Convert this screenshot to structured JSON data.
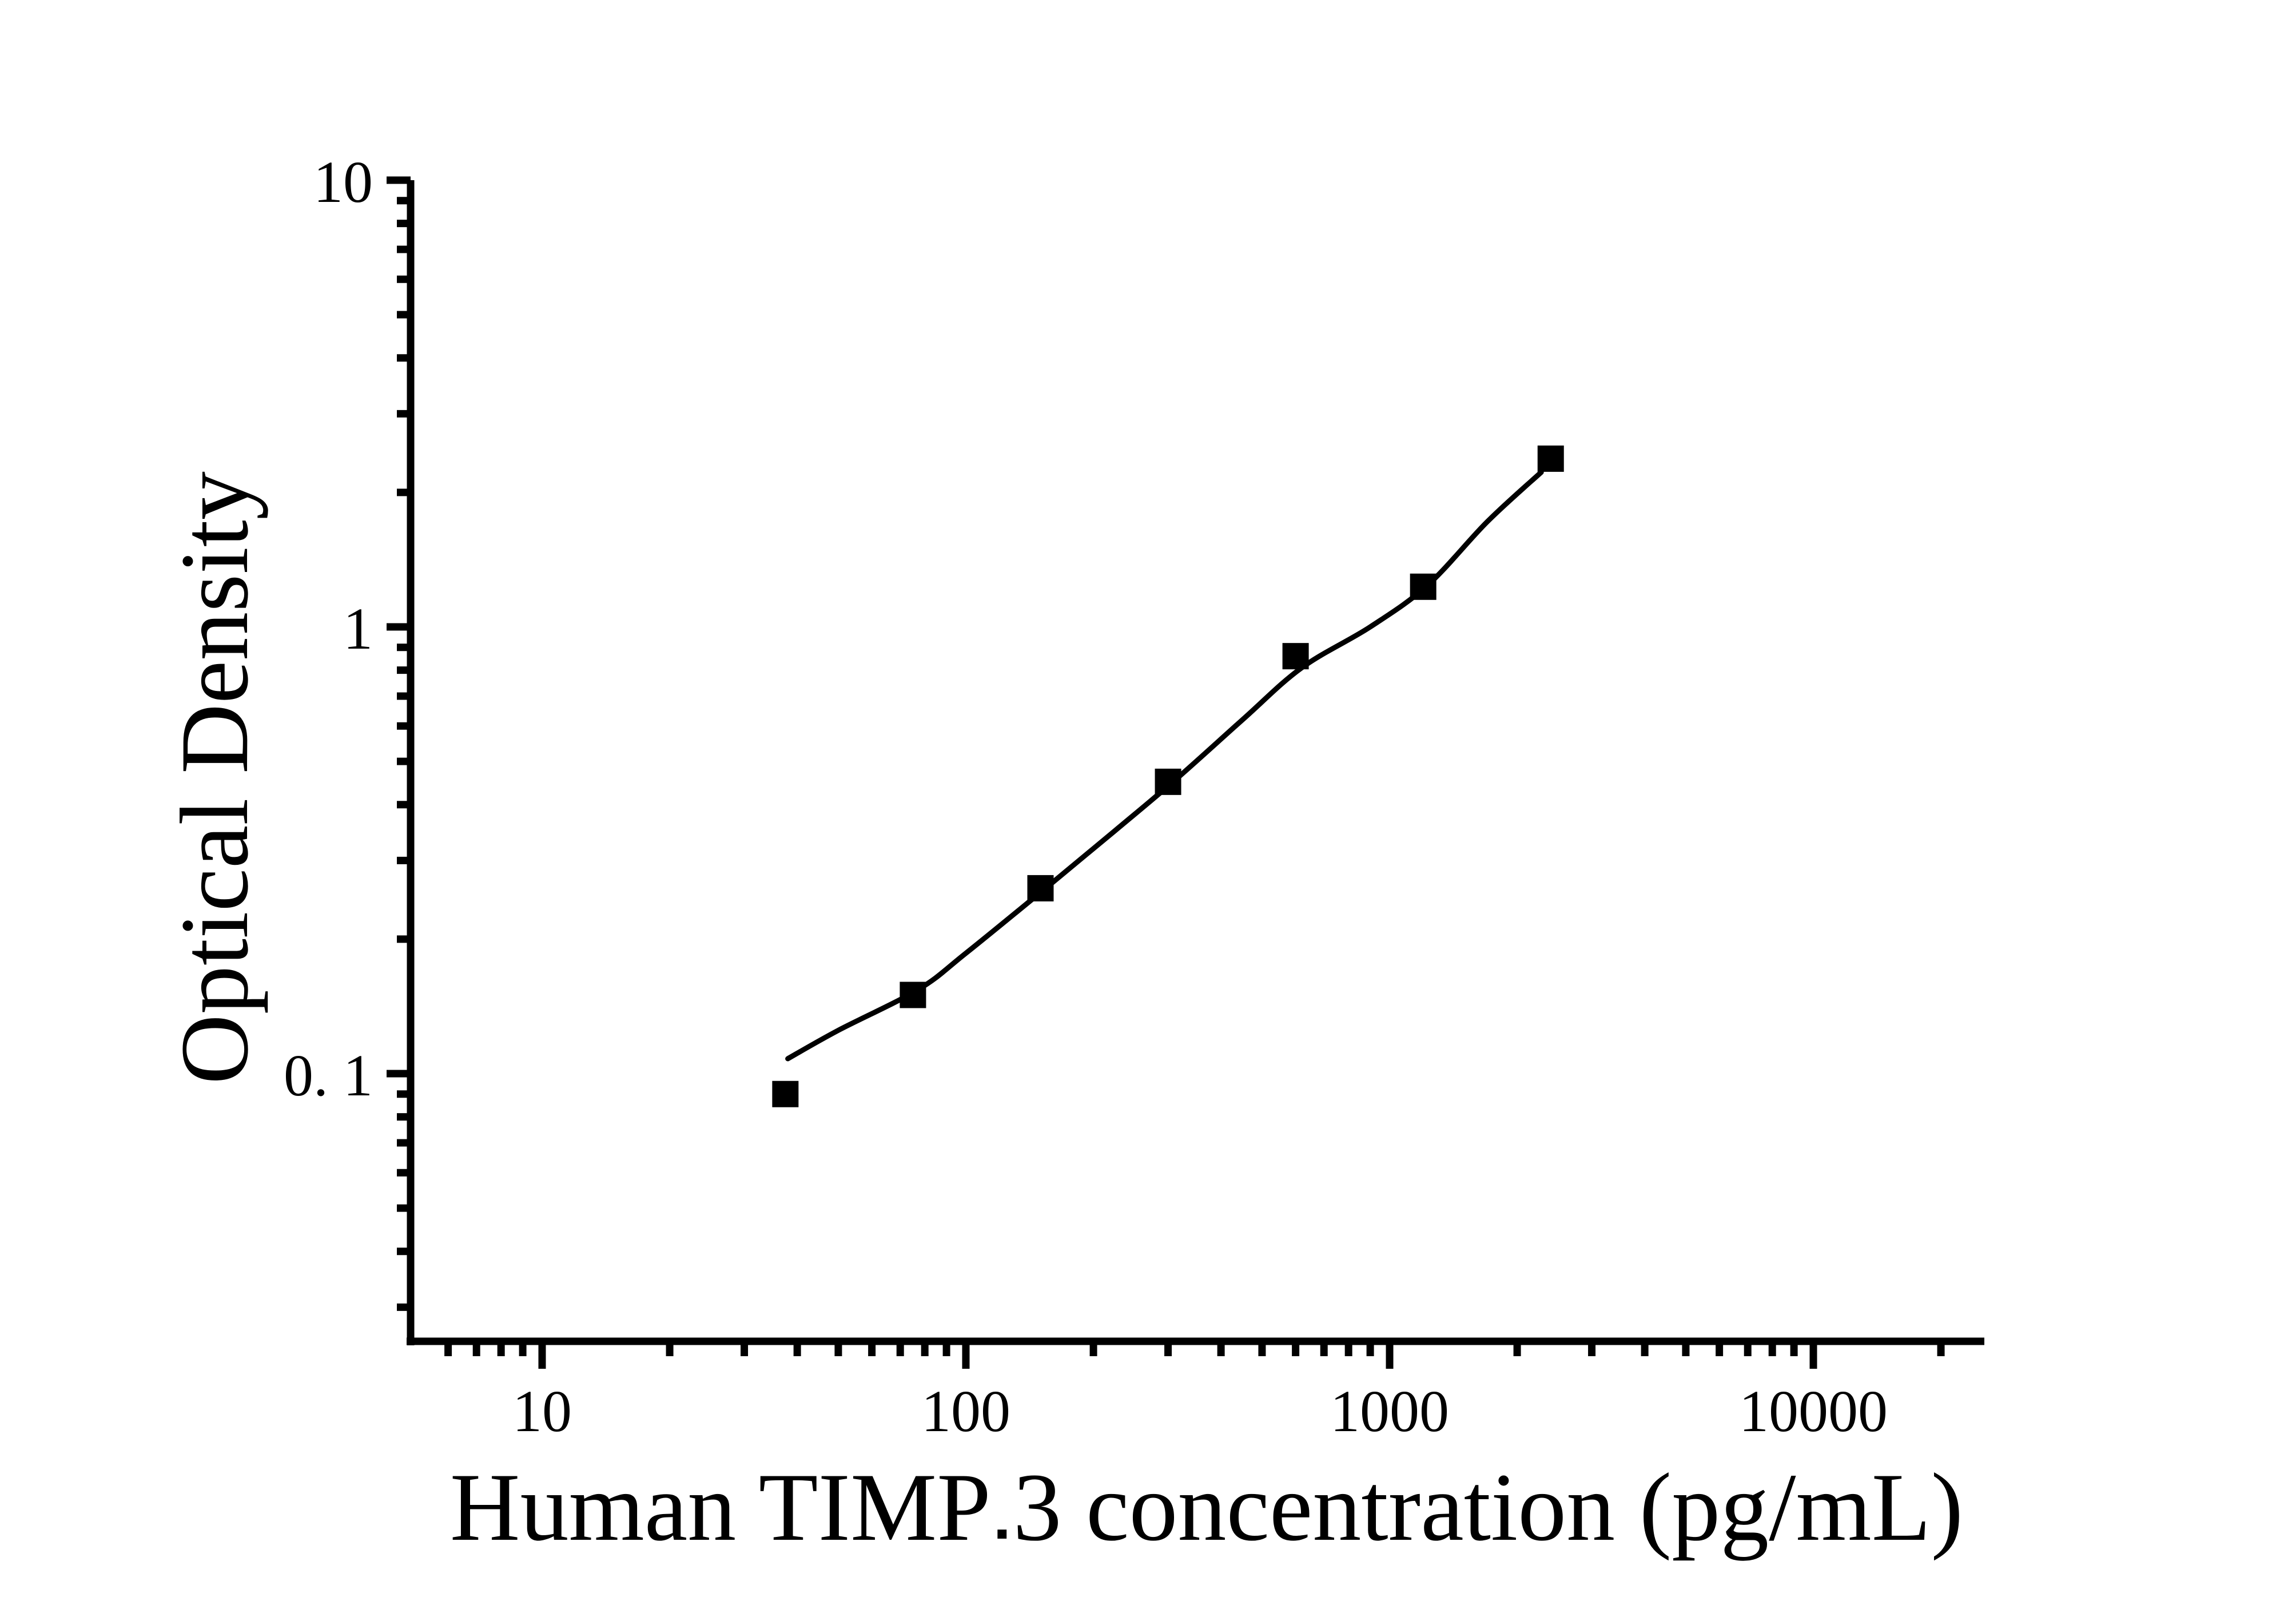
{
  "figure": {
    "background": "#ffffff",
    "ink_color": "#000000"
  },
  "labels": {
    "x_title_prefix": "Human TIMP",
    "x_title_hyphen": "▪",
    "x_title_suffix": "3 concentration (pg/mL)",
    "y_title": "Optical Density"
  },
  "chart_data": {
    "type": "scatter",
    "title": "",
    "xlabel": "Human TIMP-3 concentration (pg/mL)",
    "ylabel": "Optical Density",
    "x_scale": "log",
    "y_scale": "log",
    "xlim": [
      5,
      25000
    ],
    "ylim": [
      0.025,
      10
    ],
    "grid": false,
    "legend_position": "none",
    "x_major_ticks": [
      10,
      100,
      1000,
      10000
    ],
    "x_tick_labels": [
      "10",
      "100",
      "1000",
      "10000"
    ],
    "x_minor_ticks": [
      6,
      7,
      8,
      9,
      20,
      30,
      40,
      50,
      60,
      70,
      80,
      90,
      200,
      300,
      400,
      500,
      600,
      700,
      800,
      900,
      2000,
      3000,
      4000,
      5000,
      6000,
      7000,
      8000,
      9000,
      20000
    ],
    "y_major_ticks": [
      10,
      1,
      0.1
    ],
    "y_tick_labels": [
      "10",
      "1",
      "0. 1"
    ],
    "y_minor_ticks": [
      9,
      8,
      7,
      6,
      5,
      4,
      3,
      2,
      0.9,
      0.8,
      0.7,
      0.6,
      0.5,
      0.4,
      0.3,
      0.2,
      0.09,
      0.08,
      0.07,
      0.06,
      0.05,
      0.04,
      0.03
    ],
    "series": [
      {
        "name": "standards",
        "marker": "filled-square",
        "color": "#000000",
        "x": [
          37.5,
          75,
          150,
          300,
          600,
          1200,
          2400
        ],
        "y": [
          0.09,
          0.15,
          0.26,
          0.45,
          0.86,
          1.23,
          2.38
        ]
      }
    ],
    "fit_curve": {
      "name": "fitted-standard-curve",
      "color": "#000000",
      "x": [
        38,
        50,
        77,
        100,
        155,
        225,
        310,
        450,
        620,
        900,
        1230,
        1700,
        2280
      ],
      "y": [
        0.108,
        0.125,
        0.154,
        0.186,
        0.261,
        0.35,
        0.452,
        0.62,
        0.81,
        1.0,
        1.24,
        1.72,
        2.22
      ]
    }
  }
}
